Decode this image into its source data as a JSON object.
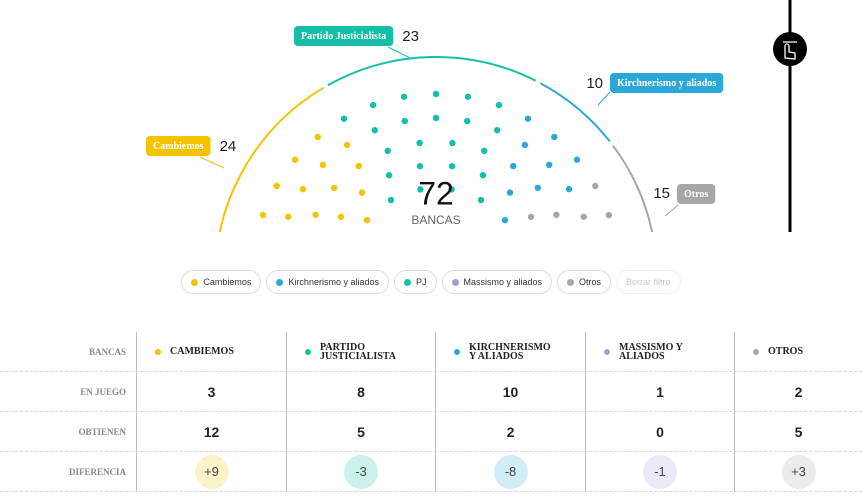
{
  "chart_data": {
    "type": "parliament",
    "total": 72,
    "total_label": "BANCAS",
    "series": [
      {
        "name": "Cambiemos",
        "color": "#f3c300",
        "values": [
          24
        ]
      },
      {
        "name": "Partido Justicialista",
        "color": "#14bfa6",
        "values": [
          23
        ]
      },
      {
        "name": "Kirchnerismo y aliados",
        "color": "#2ba8d8",
        "values": [
          10
        ]
      },
      {
        "name": "Otros",
        "color": "#a6a6a6",
        "values": [
          15
        ]
      }
    ]
  },
  "legend": {
    "items": [
      {
        "name": "Cambiemos",
        "color": "#f3c300"
      },
      {
        "name": "Kirchnerismo y aliados",
        "color": "#2ba8d8"
      },
      {
        "name": "PJ",
        "color": "#14bfa6"
      },
      {
        "name": "Massismo y aliados",
        "color": "#a89ad6"
      },
      {
        "name": "Otros",
        "color": "#a6a6a6"
      }
    ],
    "clear": "Borrar filtro"
  },
  "table": {
    "corner": "BANCAS",
    "columns": [
      {
        "name": "CAMBIEMOS",
        "color": "#f3c300"
      },
      {
        "name": "PARTIDO JUSTICIALISTA",
        "color": "#14bfa6"
      },
      {
        "name": "KIRCHNERISMO Y ALIADOS",
        "color": "#2ba8d8"
      },
      {
        "name": "MASSISMO Y ALIADOS",
        "color": "#a89ad6"
      },
      {
        "name": "OTROS",
        "color": "#a6a6a6"
      }
    ],
    "rows": [
      {
        "label": "EN JUEGO",
        "cells": [
          3,
          8,
          10,
          1,
          2
        ]
      },
      {
        "label": "OBTIENEN",
        "cells": [
          12,
          5,
          2,
          0,
          5
        ]
      },
      {
        "label": "DIFERENCIA",
        "cells": [
          "+9",
          "-3",
          "-8",
          "-1",
          "+3"
        ]
      }
    ]
  }
}
